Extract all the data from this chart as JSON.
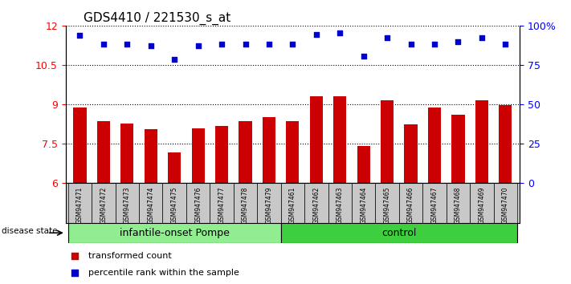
{
  "title": "GDS4410 / 221530_s_at",
  "samples": [
    "GSM947471",
    "GSM947472",
    "GSM947473",
    "GSM947474",
    "GSM947475",
    "GSM947476",
    "GSM947477",
    "GSM947478",
    "GSM947479",
    "GSM947461",
    "GSM947462",
    "GSM947463",
    "GSM947464",
    "GSM947465",
    "GSM947466",
    "GSM947467",
    "GSM947468",
    "GSM947469",
    "GSM947470"
  ],
  "bar_values": [
    8.87,
    8.35,
    8.27,
    8.07,
    7.18,
    8.08,
    8.17,
    8.35,
    8.52,
    8.35,
    9.32,
    9.3,
    7.43,
    9.17,
    8.25,
    8.87,
    8.62,
    9.17,
    8.97
  ],
  "dot_values": [
    11.62,
    11.3,
    11.28,
    11.22,
    10.72,
    11.22,
    11.28,
    11.3,
    11.3,
    11.3,
    11.65,
    11.72,
    10.82,
    11.55,
    11.28,
    11.3,
    11.37,
    11.55,
    11.3
  ],
  "groups": [
    {
      "label": "infantile-onset Pompe",
      "start": 0,
      "end": 9,
      "color": "#90ee90"
    },
    {
      "label": "control",
      "start": 9,
      "end": 19,
      "color": "#3ecf3e"
    }
  ],
  "ylim_left": [
    6,
    12
  ],
  "yticks_left": [
    6,
    7.5,
    9,
    10.5,
    12
  ],
  "ylim_right": [
    0,
    100
  ],
  "yticks_right": [
    0,
    25,
    50,
    75,
    100
  ],
  "bar_color": "#cc0000",
  "dot_color": "#0000cc",
  "grid_color": "#000000",
  "sample_bg_color": "#c8c8c8",
  "legend_items": [
    {
      "label": "transformed count",
      "color": "#cc0000"
    },
    {
      "label": "percentile rank within the sample",
      "color": "#0000cc"
    }
  ],
  "disease_state_label": "disease state",
  "right_ytick_labels": [
    "0",
    "25",
    "50",
    "75",
    "100%"
  ]
}
